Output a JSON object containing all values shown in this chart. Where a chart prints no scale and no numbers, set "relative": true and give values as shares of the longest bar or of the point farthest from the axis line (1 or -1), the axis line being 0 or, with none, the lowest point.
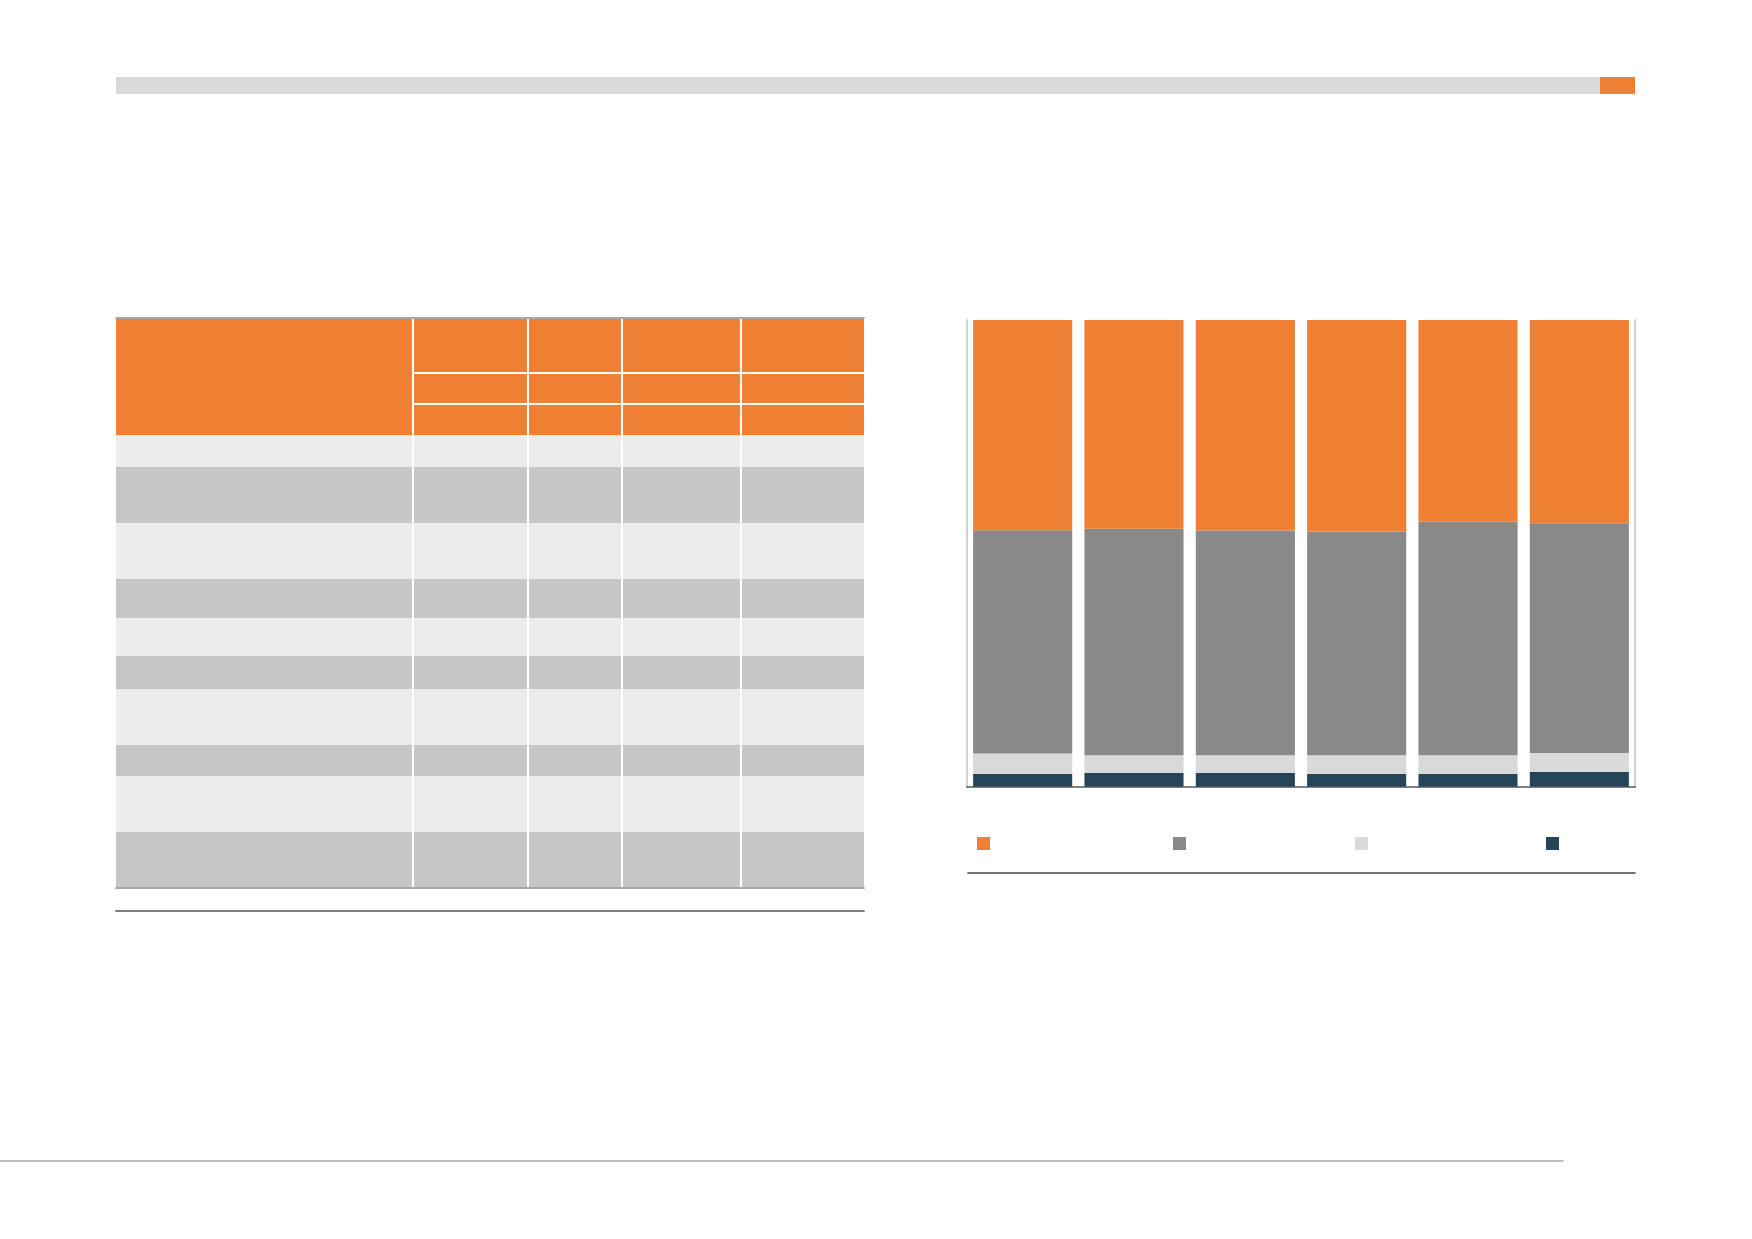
{
  "chart_data": {
    "type": "bar",
    "stacked": true,
    "relative": true,
    "categories": [
      null,
      null,
      null,
      null,
      null,
      null
    ],
    "series": [
      {
        "color": "#264559",
        "values": [
          0.028,
          0.03,
          0.03,
          0.028,
          0.028,
          0.032
        ]
      },
      {
        "color": "#d9d9d9",
        "values": [
          0.044,
          0.038,
          0.038,
          0.04,
          0.04,
          0.041
        ]
      },
      {
        "color": "#898989",
        "values": [
          0.478,
          0.485,
          0.481,
          0.479,
          0.5,
          0.492
        ]
      },
      {
        "color": "#ee7f33",
        "values": [
          0.45,
          0.447,
          0.451,
          0.453,
          0.432,
          0.435
        ]
      }
    ],
    "grid": false,
    "legend": false
  }
}
